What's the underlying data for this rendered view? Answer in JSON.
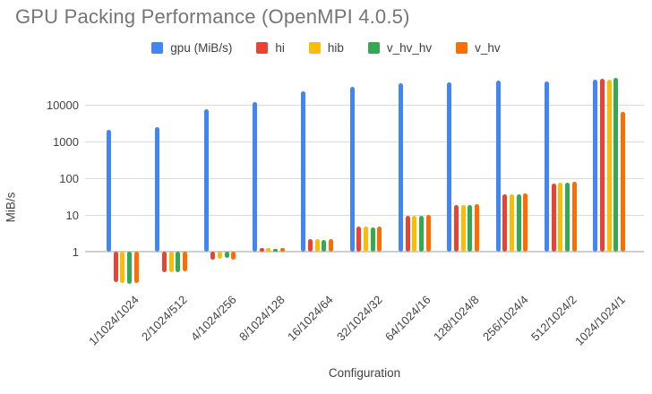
{
  "chart_data": {
    "type": "bar",
    "title": "GPU Packing Performance (OpenMPI 4.0.5)",
    "xlabel": "Configuration",
    "ylabel": "MiB/s",
    "y_scale": "log",
    "y_ticks": [
      1,
      10,
      100,
      1000,
      10000
    ],
    "ylim": [
      0.12,
      60000
    ],
    "grid": "horizontal",
    "legend_position": "top",
    "categories": [
      "1/1024/1024",
      "2/1024/512",
      "4/1024/256",
      "8/1024/128",
      "16/1024/64",
      "32/1024/32",
      "64/1024/16",
      "128/1024/8",
      "256/1024/4",
      "512/1024/2",
      "1024/1024/1"
    ],
    "series": [
      {
        "name": "gpu (MiB/s)",
        "color": "#4285F4",
        "values": [
          2100,
          2500,
          8000,
          12000,
          24000,
          32000,
          41000,
          43000,
          47000,
          45000,
          50000
        ]
      },
      {
        "name": "hi",
        "color": "#EA4335",
        "values": [
          0.15,
          0.28,
          0.6,
          1.3,
          2.2,
          4.8,
          9.5,
          19,
          37,
          75,
          54000
        ]
      },
      {
        "name": "hib",
        "color": "#FBBC04",
        "values": [
          0.145,
          0.28,
          0.65,
          1.3,
          2.2,
          4.8,
          9.5,
          19,
          38,
          78,
          51000
        ]
      },
      {
        "name": "v_hv_hv",
        "color": "#34A853",
        "values": [
          0.135,
          0.28,
          0.7,
          1.2,
          2.1,
          4.7,
          9.8,
          19.5,
          38,
          76,
          55000
        ]
      },
      {
        "name": "v_hv",
        "color": "#FF6D01",
        "values": [
          0.14,
          0.3,
          0.6,
          1.25,
          2.3,
          5.0,
          10.5,
          20,
          40,
          80,
          6600
        ]
      }
    ]
  }
}
